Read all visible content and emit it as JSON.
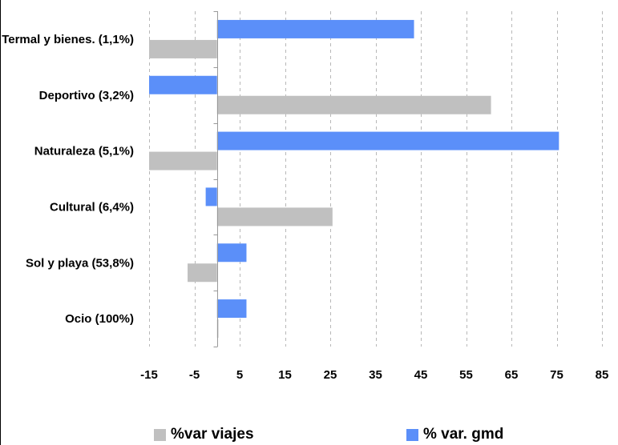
{
  "chart_data": {
    "type": "bar",
    "orientation": "horizontal",
    "categories": [
      "Termal y bienes. (1,1%)",
      "Deportivo (3,2%)",
      "Naturaleza (5,1%)",
      "Cultural (6,4%)",
      "Sol y playa (53,8%)",
      "Ocio (100%)"
    ],
    "series": [
      {
        "name": "% var. gmd",
        "color": "#5b8ff9",
        "values": [
          43.5,
          -15.0,
          75.5,
          -2.5,
          6.5,
          6.5
        ]
      },
      {
        "name": "%var viajes",
        "color": "#c0c0c0",
        "values": [
          -15.0,
          60.5,
          -15.0,
          25.5,
          -6.5,
          0.3
        ]
      }
    ],
    "xlim": [
      -15,
      85
    ],
    "xticks": [
      -15,
      -5,
      5,
      15,
      25,
      35,
      45,
      55,
      65,
      75,
      85
    ],
    "grid": "vertical-dashed",
    "legend_placement": "bottom",
    "legend": [
      {
        "label": "%var viajes",
        "color": "#c0c0c0"
      },
      {
        "label": "% var. gmd",
        "color": "#5b8ff9"
      }
    ]
  }
}
